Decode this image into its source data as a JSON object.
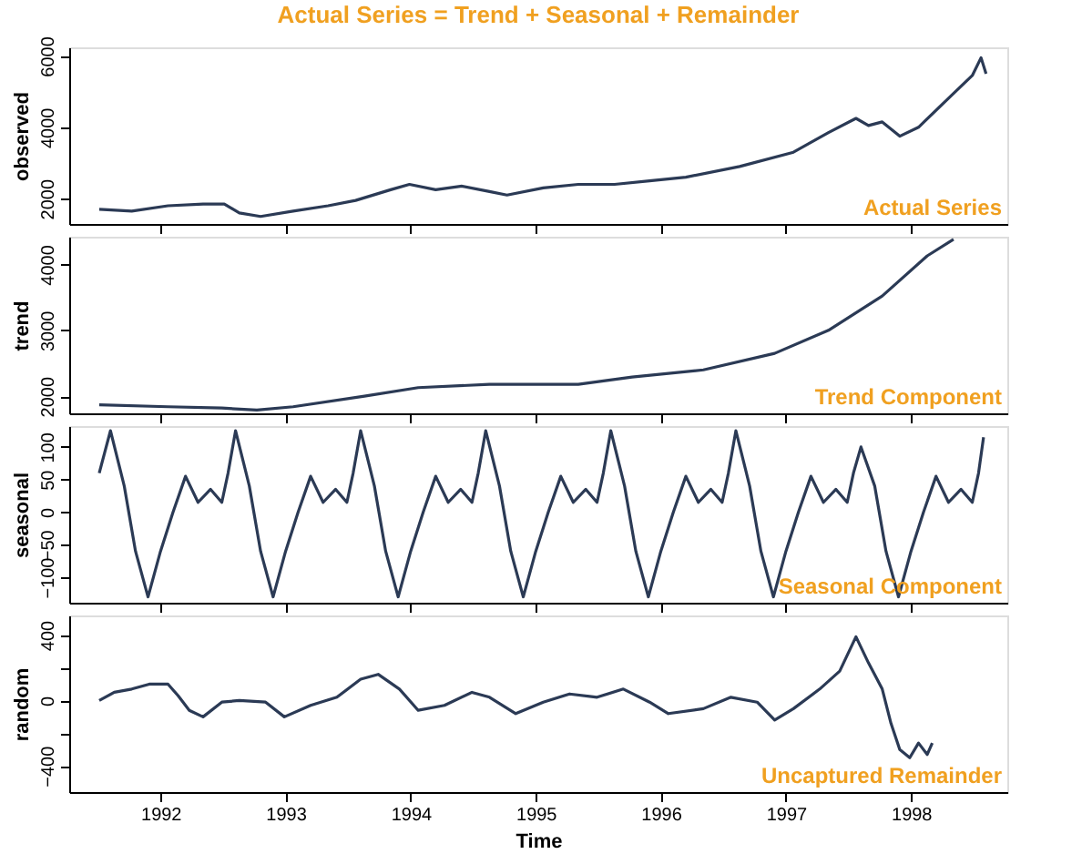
{
  "chart_data": [
    {
      "type": "line",
      "title": "Actual Series = Trend + Seasonal + Remainder",
      "ylabel": "observed",
      "annotations": [
        "Actual Series"
      ],
      "xlim": [
        1991.27,
        1998.77
      ],
      "xticks": [
        1992,
        1993,
        1994,
        1995,
        1996,
        1997,
        1998
      ],
      "ylim": [
        1290,
        6240
      ],
      "yticks": [
        2000,
        4000,
        6000
      ],
      "tick_labels": "y",
      "grid": false,
      "series": [
        {
          "color": "#2b3a55",
          "x": [
            1991.51,
            1991.77,
            1992.06,
            1992.34,
            1992.51,
            1992.63,
            1992.8,
            1993.06,
            1993.34,
            1993.56,
            1993.84,
            1993.99,
            1994.2,
            1994.41,
            1994.63,
            1994.77,
            1995.06,
            1995.34,
            1995.63,
            1995.91,
            1996.2,
            1996.63,
            1997.06,
            1997.34,
            1997.56,
            1997.66,
            1997.77,
            1997.91,
            1998.06,
            1998.34,
            1998.49,
            1998.56,
            1998.6
          ],
          "values": [
            1700,
            1650,
            1800,
            1850,
            1850,
            1600,
            1500,
            1650,
            1800,
            1950,
            2250,
            2400,
            2250,
            2350,
            2200,
            2100,
            2300,
            2400,
            2400,
            2500,
            2600,
            2900,
            3300,
            3850,
            4250,
            4050,
            4150,
            3750,
            4000,
            4950,
            5450,
            5950,
            5500
          ]
        }
      ]
    },
    {
      "type": "line",
      "ylabel": "trend",
      "annotations": [
        "Trend Component"
      ],
      "xlim": [
        1991.27,
        1998.77
      ],
      "xticks": [
        1992,
        1993,
        1994,
        1995,
        1996,
        1997,
        1998
      ],
      "ylim": [
        1740,
        4420
      ],
      "yticks": [
        2000,
        3000,
        4000
      ],
      "tick_labels": "y",
      "grid": false,
      "series": [
        {
          "color": "#2b3a55",
          "x": [
            1991.51,
            1992.06,
            1992.49,
            1992.77,
            1993.06,
            1993.63,
            1994.06,
            1994.63,
            1995.34,
            1995.77,
            1996.34,
            1996.91,
            1997.34,
            1997.77,
            1998.13,
            1998.34
          ],
          "values": [
            1870,
            1840,
            1820,
            1790,
            1840,
            2000,
            2130,
            2180,
            2180,
            2290,
            2400,
            2650,
            3000,
            3520,
            4130,
            4380
          ]
        }
      ]
    },
    {
      "type": "line",
      "ylabel": "seasonal",
      "annotations": [
        "Seasonal Component"
      ],
      "xlim": [
        1991.27,
        1998.77
      ],
      "xticks": [
        1992,
        1993,
        1994,
        1995,
        1996,
        1997,
        1998
      ],
      "ylim": [
        -139,
        132
      ],
      "yticks": [
        -100,
        -50,
        0,
        50,
        100
      ],
      "tick_labels": "y",
      "grid": false,
      "series": [
        {
          "color": "#2b3a55",
          "x": [
            1991.51,
            1991.6,
            1991.71,
            1991.8,
            1991.9,
            1992.0,
            1992.1,
            1992.2,
            1992.3,
            1992.4,
            1992.49,
            1992.54,
            1992.6,
            1992.71,
            1992.8,
            1992.9,
            1993.0,
            1993.1,
            1993.2,
            1993.3,
            1993.4,
            1993.49,
            1993.54,
            1993.6,
            1993.71,
            1993.8,
            1993.9,
            1994.0,
            1994.1,
            1994.2,
            1994.3,
            1994.4,
            1994.49,
            1994.54,
            1994.6,
            1994.71,
            1994.8,
            1994.9,
            1995.0,
            1995.1,
            1995.2,
            1995.3,
            1995.4,
            1995.49,
            1995.54,
            1995.6,
            1995.71,
            1995.8,
            1995.9,
            1996.0,
            1996.1,
            1996.2,
            1996.3,
            1996.4,
            1996.49,
            1996.54,
            1996.6,
            1996.71,
            1996.8,
            1996.9,
            1997.0,
            1997.1,
            1997.2,
            1997.3,
            1997.4,
            1997.49,
            1997.54,
            1997.6,
            1997.71,
            1997.8,
            1997.9,
            1998.0,
            1998.1,
            1998.2,
            1998.3,
            1998.4,
            1998.49,
            1998.54,
            1998.58
          ],
          "values": [
            60,
            125,
            40,
            -60,
            -130,
            -60,
            0,
            55,
            15,
            35,
            15,
            60,
            125,
            40,
            -60,
            -130,
            -60,
            0,
            55,
            15,
            35,
            15,
            60,
            125,
            40,
            -60,
            -130,
            -60,
            0,
            55,
            15,
            35,
            15,
            60,
            125,
            40,
            -60,
            -130,
            -60,
            0,
            55,
            15,
            35,
            15,
            60,
            125,
            40,
            -60,
            -130,
            -60,
            0,
            55,
            15,
            35,
            15,
            60,
            125,
            40,
            -60,
            -130,
            -60,
            0,
            55,
            15,
            35,
            15,
            60,
            100,
            40,
            -60,
            -130,
            -60,
            0,
            55,
            15,
            35,
            15,
            60,
            115
          ]
        }
      ]
    },
    {
      "type": "line",
      "ylabel": "random",
      "xlabel": "Time",
      "annotations": [
        "Uncaptured Remainder"
      ],
      "xlim": [
        1991.27,
        1998.77
      ],
      "xticks": [
        1992,
        1993,
        1994,
        1995,
        1996,
        1997,
        1998
      ],
      "ylim": [
        -560,
        520
      ],
      "yticks": [
        -400,
        {
          "value": -200,
          "label": null
        },
        0,
        {
          "value": 200,
          "label": null
        },
        400
      ],
      "grid": false,
      "series": [
        {
          "color": "#2b3a55",
          "x": [
            1991.51,
            1991.63,
            1991.77,
            1991.91,
            1992.06,
            1992.14,
            1992.23,
            1992.34,
            1992.49,
            1992.63,
            1992.84,
            1992.99,
            1993.2,
            1993.41,
            1993.6,
            1993.74,
            1993.91,
            1994.06,
            1994.27,
            1994.49,
            1994.63,
            1994.84,
            1995.06,
            1995.27,
            1995.49,
            1995.7,
            1995.91,
            1996.06,
            1996.34,
            1996.56,
            1996.77,
            1996.91,
            1997.06,
            1997.27,
            1997.43,
            1997.56,
            1997.66,
            1997.77,
            1997.84,
            1997.91,
            1997.99,
            1998.06,
            1998.13,
            1998.17
          ],
          "values": [
            0,
            50,
            70,
            100,
            100,
            30,
            -60,
            -100,
            -10,
            0,
            -10,
            -100,
            -30,
            20,
            130,
            160,
            70,
            -60,
            -30,
            50,
            20,
            -80,
            -10,
            40,
            20,
            70,
            -10,
            -80,
            -50,
            20,
            -10,
            -120,
            -50,
            70,
            180,
            390,
            230,
            70,
            -140,
            -300,
            -350,
            -260,
            -330,
            -260
          ]
        }
      ]
    }
  ]
}
